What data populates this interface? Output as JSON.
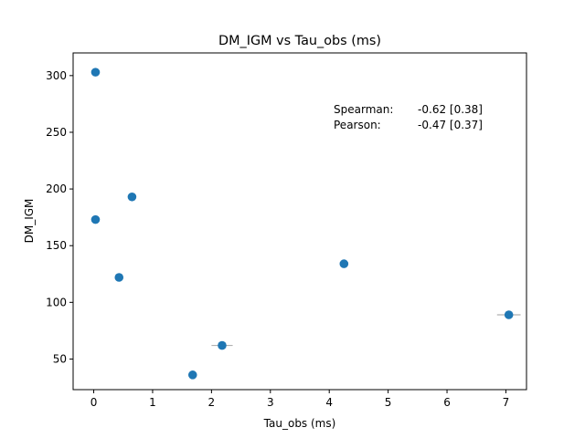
{
  "chart_data": {
    "type": "scatter",
    "title": "DM_IGM vs Tau_obs (ms)",
    "xlabel": "Tau_obs (ms)",
    "ylabel": "DM_IGM",
    "xlim": [
      -0.35,
      7.35
    ],
    "ylim": [
      23,
      320
    ],
    "xticks": [
      0,
      1,
      2,
      3,
      4,
      5,
      6,
      7
    ],
    "yticks": [
      50,
      100,
      150,
      200,
      250,
      300
    ],
    "grid": false,
    "marker_color": "#1f77b4",
    "errorbar_color": "#b0b0b0",
    "points": [
      {
        "x": 0.03,
        "y": 303,
        "xerr": 0
      },
      {
        "x": 0.03,
        "y": 173,
        "xerr": 0
      },
      {
        "x": 0.65,
        "y": 193,
        "xerr": 0
      },
      {
        "x": 0.43,
        "y": 122,
        "xerr": 0
      },
      {
        "x": 1.68,
        "y": 36,
        "xerr": 0
      },
      {
        "x": 2.18,
        "y": 62,
        "xerr": 0.18
      },
      {
        "x": 4.25,
        "y": 134,
        "xerr": 0
      },
      {
        "x": 7.05,
        "y": 89,
        "xerr": 0.2
      }
    ],
    "annotations": [
      {
        "label": "Spearman:",
        "value": "-0.62 [0.38]"
      },
      {
        "label": "Pearson:",
        "value": "-0.47 [0.37]"
      }
    ]
  }
}
